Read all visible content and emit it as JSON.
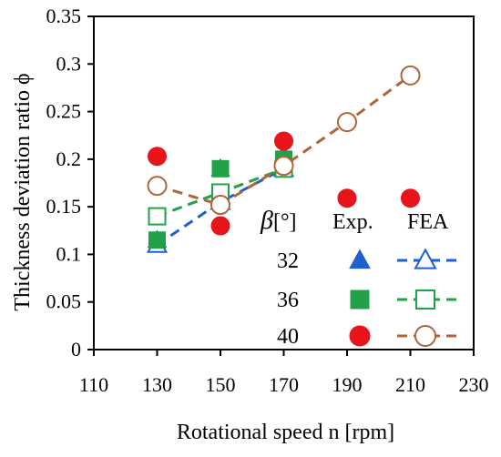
{
  "chart_data": {
    "type": "scatter",
    "xlabel": "Rotational speed n [rpm]",
    "ylabel": "Thickness deviation ratio ϕ",
    "xlim": [
      110,
      230
    ],
    "ylim": [
      0,
      0.35
    ],
    "xticks": [
      "110",
      "130",
      "150",
      "170",
      "190",
      "210",
      "230"
    ],
    "yticks": [
      "0",
      "0.05",
      "0.1",
      "0.15",
      "0.2",
      "0.25",
      "0.3",
      "0.35"
    ],
    "grid": false,
    "legend": {
      "placement": "bottom-right",
      "header_symbol": "β",
      "header_unit": "[°]",
      "col_exp": "Exp.",
      "col_fea": "FEA",
      "rows": [
        "32",
        "36",
        "40"
      ]
    },
    "series": [
      {
        "name": "32",
        "kind": "Exp.",
        "marker": "triangle-filled",
        "color": "#1f5fcf",
        "x": [
          130,
          150,
          170
        ],
        "y": [
          0.115,
          0.19,
          0.205
        ]
      },
      {
        "name": "32",
        "kind": "FEA",
        "marker": "triangle-open",
        "color": "#1f5fcf",
        "x": [
          130,
          150,
          170
        ],
        "y": [
          0.11,
          0.155,
          0.19
        ]
      },
      {
        "name": "36",
        "kind": "Exp.",
        "marker": "square-filled",
        "color": "#22a04a",
        "x": [
          130,
          150,
          170
        ],
        "y": [
          0.115,
          0.19,
          0.2
        ]
      },
      {
        "name": "36",
        "kind": "FEA",
        "marker": "square-open",
        "color": "#22a04a",
        "x": [
          130,
          150,
          170
        ],
        "y": [
          0.14,
          0.165,
          0.19
        ]
      },
      {
        "name": "40",
        "kind": "Exp.",
        "marker": "circle-filled",
        "color": "#e8141c",
        "x": [
          130,
          150,
          170,
          190,
          210
        ],
        "y": [
          0.203,
          0.13,
          0.219,
          0.159,
          0.159
        ]
      },
      {
        "name": "40",
        "kind": "FEA",
        "marker": "circle-open",
        "color": "#b0643a",
        "x": [
          130,
          150,
          170,
          190,
          210
        ],
        "y": [
          0.172,
          0.152,
          0.193,
          0.239,
          0.288
        ]
      }
    ]
  }
}
